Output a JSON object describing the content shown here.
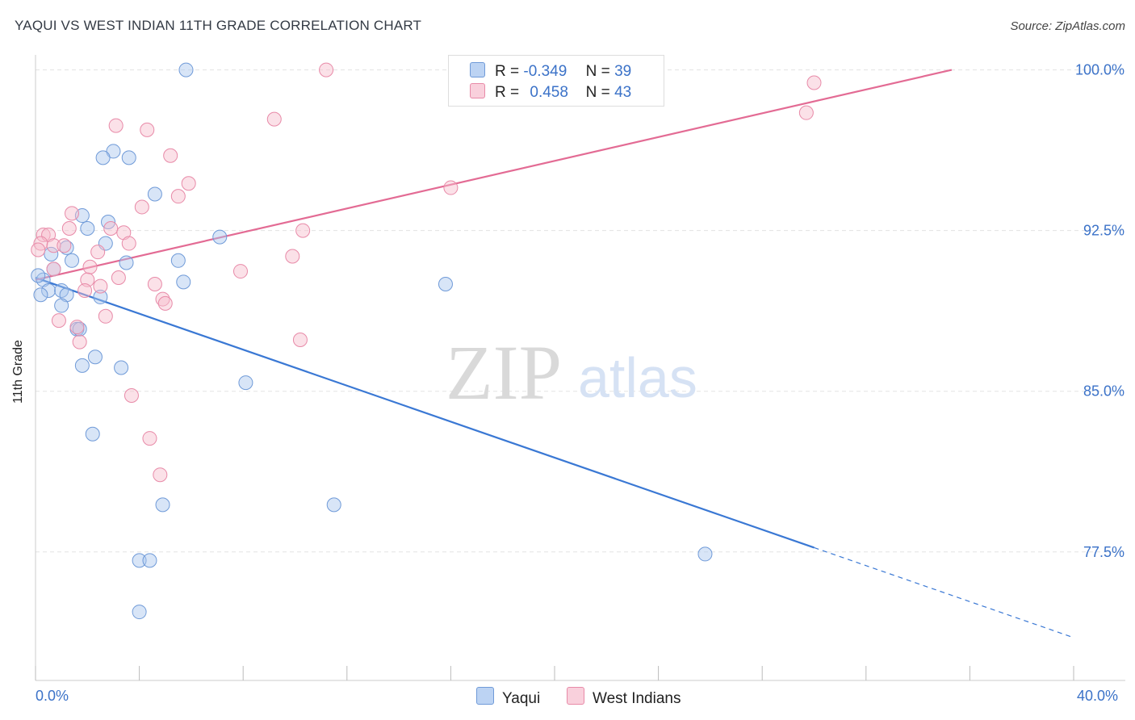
{
  "header": {
    "title": "YAQUI VS WEST INDIAN 11TH GRADE CORRELATION CHART",
    "source": "Source: ZipAtlas.com"
  },
  "watermark": {
    "zip": "ZIP",
    "atlas": "atlas"
  },
  "legend": {
    "r_label": "R =",
    "n_label": "N =",
    "items": [
      {
        "name": "Yaqui",
        "r": "-0.349",
        "n": "39",
        "color": "#a9c6ee",
        "stroke": "#6f9ad8"
      },
      {
        "name": "West Indians",
        "r": "0.458",
        "n": "43",
        "color": "#f6bccd",
        "stroke": "#e88aa8"
      }
    ]
  },
  "chart_data": {
    "type": "scatter",
    "title": "YAQUI VS WEST INDIAN 11TH GRADE CORRELATION CHART",
    "xlabel": "",
    "ylabel": "11th Grade",
    "xlim": [
      0,
      40
    ],
    "ylim": [
      71.5,
      100.7
    ],
    "x_tick_labels": [
      "0.0%",
      "40.0%"
    ],
    "y_ticks": [
      100.0,
      92.5,
      85.0,
      77.5
    ],
    "y_tick_labels": [
      "100.0%",
      "92.5%",
      "85.0%",
      "77.5%"
    ],
    "grid": true,
    "series": [
      {
        "name": "Yaqui",
        "color": "#3a78d4",
        "points": [
          [
            5.8,
            100.0
          ],
          [
            3.0,
            96.2
          ],
          [
            2.6,
            95.9
          ],
          [
            3.6,
            95.9
          ],
          [
            4.6,
            94.2
          ],
          [
            1.8,
            93.2
          ],
          [
            2.0,
            92.6
          ],
          [
            2.8,
            92.9
          ],
          [
            7.1,
            92.2
          ],
          [
            2.7,
            91.9
          ],
          [
            1.2,
            91.7
          ],
          [
            0.6,
            91.4
          ],
          [
            1.4,
            91.1
          ],
          [
            3.5,
            91.0
          ],
          [
            5.5,
            91.1
          ],
          [
            0.7,
            90.7
          ],
          [
            0.3,
            90.2
          ],
          [
            5.7,
            90.1
          ],
          [
            15.8,
            90.0
          ],
          [
            0.5,
            89.7
          ],
          [
            1.0,
            89.7
          ],
          [
            0.2,
            89.5
          ],
          [
            1.2,
            89.5
          ],
          [
            2.5,
            89.4
          ],
          [
            1.0,
            89.0
          ],
          [
            1.6,
            87.9
          ],
          [
            1.7,
            87.9
          ],
          [
            2.3,
            86.6
          ],
          [
            1.8,
            86.2
          ],
          [
            3.3,
            86.1
          ],
          [
            8.1,
            85.4
          ],
          [
            2.2,
            83.0
          ],
          [
            4.9,
            79.7
          ],
          [
            11.5,
            79.7
          ],
          [
            25.8,
            77.4
          ],
          [
            4.0,
            77.1
          ],
          [
            4.4,
            77.1
          ],
          [
            4.0,
            74.7
          ],
          [
            0.1,
            90.4
          ]
        ],
        "trend": {
          "x0": 0.0,
          "y0": 90.3,
          "x_solid_end": 30.0,
          "x1": 40.0,
          "y1": 73.5
        }
      },
      {
        "name": "West Indians",
        "color": "#e36b94",
        "points": [
          [
            11.2,
            100.0
          ],
          [
            30.0,
            99.4
          ],
          [
            29.7,
            98.0
          ],
          [
            9.2,
            97.7
          ],
          [
            3.1,
            97.4
          ],
          [
            4.3,
            97.2
          ],
          [
            5.2,
            96.0
          ],
          [
            16.0,
            94.5
          ],
          [
            5.9,
            94.7
          ],
          [
            5.5,
            94.1
          ],
          [
            4.1,
            93.6
          ],
          [
            1.4,
            93.3
          ],
          [
            0.3,
            92.3
          ],
          [
            0.5,
            92.3
          ],
          [
            1.3,
            92.6
          ],
          [
            2.9,
            92.6
          ],
          [
            3.4,
            92.4
          ],
          [
            10.3,
            92.5
          ],
          [
            0.2,
            91.9
          ],
          [
            0.7,
            91.8
          ],
          [
            1.1,
            91.8
          ],
          [
            2.4,
            91.5
          ],
          [
            9.9,
            91.3
          ],
          [
            0.1,
            91.6
          ],
          [
            2.1,
            90.8
          ],
          [
            3.6,
            91.9
          ],
          [
            7.9,
            90.6
          ],
          [
            3.2,
            90.3
          ],
          [
            0.7,
            90.7
          ],
          [
            2.0,
            90.2
          ],
          [
            4.6,
            90.0
          ],
          [
            2.5,
            89.9
          ],
          [
            1.9,
            89.7
          ],
          [
            4.9,
            89.3
          ],
          [
            5.0,
            89.1
          ],
          [
            0.9,
            88.3
          ],
          [
            2.7,
            88.5
          ],
          [
            1.6,
            88.0
          ],
          [
            10.2,
            87.4
          ],
          [
            1.7,
            87.3
          ],
          [
            3.7,
            84.8
          ],
          [
            4.4,
            82.8
          ],
          [
            4.8,
            81.1
          ]
        ],
        "trend": {
          "x0": 0.0,
          "y0": 90.2,
          "x1": 35.3,
          "y1": 100.0
        }
      }
    ]
  }
}
